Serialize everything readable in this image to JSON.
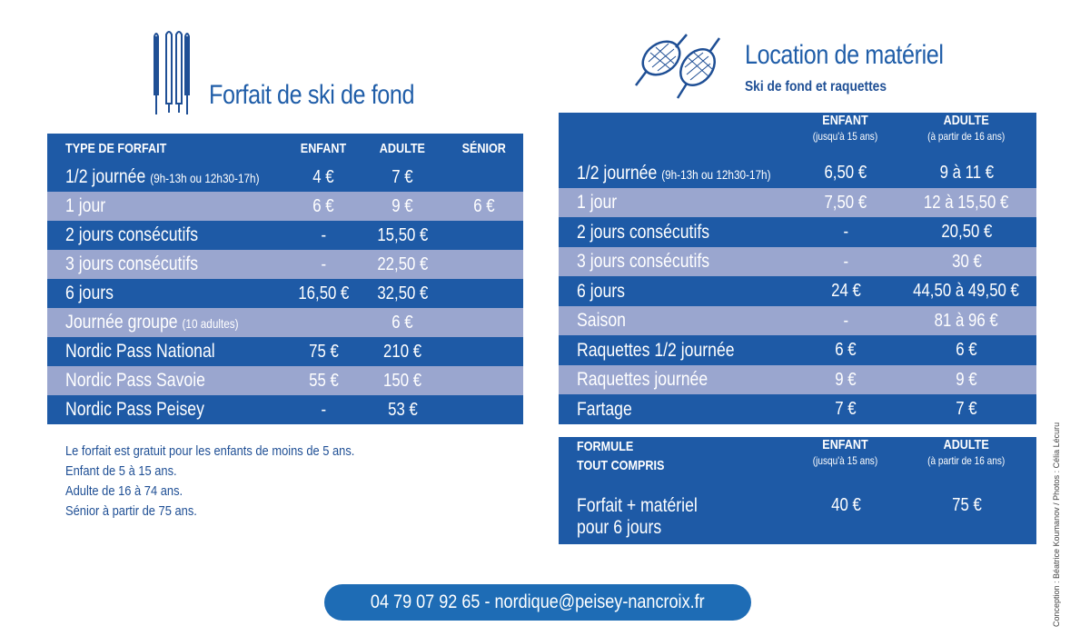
{
  "forfait": {
    "title": "Forfait de ski de fond",
    "icon": "ski-poles-icon",
    "headers": {
      "type": "TYPE DE FORFAIT",
      "enfant": "ENFANT",
      "adulte": "ADULTE",
      "senior": "SÉNIOR"
    },
    "rows": [
      {
        "label": "1/2 journée",
        "note": "(9h-13h ou 12h30-17h)",
        "enfant": "4 €",
        "adulte": "7 €",
        "senior": ""
      },
      {
        "label": "1 jour",
        "note": "",
        "enfant": "6 €",
        "adulte": "9 €",
        "senior": "6 €"
      },
      {
        "label": "2 jours consécutifs",
        "note": "",
        "enfant": "-",
        "adulte": "15,50 €",
        "senior": ""
      },
      {
        "label": "3 jours consécutifs",
        "note": "",
        "enfant": "-",
        "adulte": "22,50 €",
        "senior": ""
      },
      {
        "label": "6 jours",
        "note": "",
        "enfant": "16,50 €",
        "adulte": "32,50 €",
        "senior": ""
      },
      {
        "label": "Journée groupe",
        "note": "(10 adultes)",
        "enfant": "",
        "adulte": "6 €",
        "senior": ""
      },
      {
        "label": "Nordic Pass National",
        "note": "",
        "enfant": "75 €",
        "adulte": "210 €",
        "senior": ""
      },
      {
        "label": "Nordic Pass Savoie",
        "note": "",
        "enfant": "55 €",
        "adulte": "150 €",
        "senior": ""
      },
      {
        "label": "Nordic Pass Peisey",
        "note": "",
        "enfant": "-",
        "adulte": "53 €",
        "senior": ""
      }
    ],
    "notes": [
      "Le forfait est gratuit pour les enfants de moins de 5 ans.",
      "Enfant de 5 à 15 ans.",
      "Adulte de 16 à 74 ans.",
      "Sénior à partir de 75 ans."
    ]
  },
  "location": {
    "title": "Location de matériel",
    "subtitle": "Ski de fond et raquettes",
    "icon": "snowshoes-icon",
    "headers": {
      "enfant": "ENFANT",
      "enfant_sub": "(jusqu'à 15 ans)",
      "adulte": "ADULTE",
      "adulte_sub": "(à partir de 16 ans)"
    },
    "rows": [
      {
        "label": "1/2 journée",
        "note": "(9h-13h ou 12h30-17h)",
        "enfant": "6,50 €",
        "adulte": "9 à 11 €"
      },
      {
        "label": "1 jour",
        "note": "",
        "enfant": "7,50 €",
        "adulte": "12 à 15,50 €"
      },
      {
        "label": "2 jours consécutifs",
        "note": "",
        "enfant": "-",
        "adulte": "20,50 €"
      },
      {
        "label": "3 jours consécutifs",
        "note": "",
        "enfant": "-",
        "adulte": "30 €"
      },
      {
        "label": "6 jours",
        "note": "",
        "enfant": "24 €",
        "adulte": "44,50 à 49,50 €"
      },
      {
        "label": "Saison",
        "note": "",
        "enfant": "-",
        "adulte": "81 à 96 €"
      },
      {
        "label": "Raquettes 1/2 journée",
        "note": "",
        "enfant": "6 €",
        "adulte": "6 €"
      },
      {
        "label": "Raquettes journée",
        "note": "",
        "enfant": "9 €",
        "adulte": "9 €"
      },
      {
        "label": "Fartage",
        "note": "",
        "enfant": "7 €",
        "adulte": "7 €"
      }
    ]
  },
  "formule": {
    "header_line1": "FORMULE",
    "header_line2": "TOUT COMPRIS",
    "enfant": "ENFANT",
    "enfant_sub": "(jusqu'à 15 ans)",
    "adulte": "ADULTE",
    "adulte_sub": "(à partir de 16 ans)",
    "label_line1": "Forfait + matériel",
    "label_line2": "pour 6 jours",
    "price_enfant": "40 €",
    "price_adulte": "75 €"
  },
  "contact": {
    "text": "04 79 07 92 65 - nordique@peisey-nancroix.fr"
  },
  "credit": {
    "text": "Conception : Béatrice Koumanov / Photos : Célia Lécuru"
  },
  "colors": {
    "dark_row": "#1e5aa6",
    "light_row": "#9aa6cf",
    "title_blue": "#1f5da8"
  }
}
